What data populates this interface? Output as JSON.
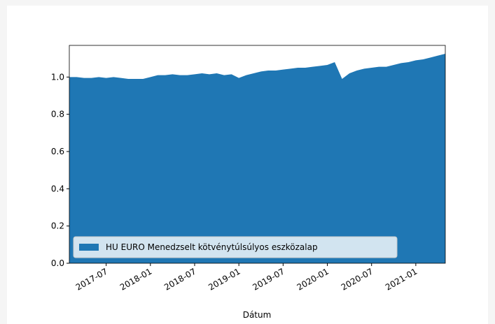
{
  "chart_data": {
    "type": "area",
    "xlabel": "Dátum",
    "x": [
      "2017-02",
      "2017-03",
      "2017-04",
      "2017-05",
      "2017-06",
      "2017-07",
      "2017-08",
      "2017-09",
      "2017-10",
      "2017-11",
      "2017-12",
      "2018-01",
      "2018-02",
      "2018-03",
      "2018-04",
      "2018-05",
      "2018-06",
      "2018-07",
      "2018-08",
      "2018-09",
      "2018-10",
      "2018-11",
      "2018-12",
      "2019-01",
      "2019-02",
      "2019-03",
      "2019-04",
      "2019-05",
      "2019-06",
      "2019-07",
      "2019-08",
      "2019-09",
      "2019-10",
      "2019-11",
      "2019-12",
      "2020-01",
      "2020-02",
      "2020-03",
      "2020-04",
      "2020-05",
      "2020-06",
      "2020-07",
      "2020-08",
      "2020-09",
      "2020-10",
      "2020-11",
      "2020-12",
      "2021-01",
      "2021-02",
      "2021-03",
      "2021-04",
      "2021-05"
    ],
    "series": [
      {
        "name": "HU EURO Menedzselt kötvénytúlsúlyos eszközalap",
        "color": "#1f77b4",
        "values": [
          1.0,
          1.0,
          0.995,
          0.995,
          1.0,
          0.995,
          1.0,
          0.995,
          0.99,
          0.99,
          0.99,
          1.0,
          1.01,
          1.01,
          1.015,
          1.01,
          1.01,
          1.015,
          1.02,
          1.015,
          1.02,
          1.01,
          1.015,
          0.995,
          1.01,
          1.02,
          1.03,
          1.035,
          1.035,
          1.04,
          1.045,
          1.05,
          1.05,
          1.055,
          1.06,
          1.065,
          1.08,
          0.99,
          1.02,
          1.035,
          1.045,
          1.05,
          1.055,
          1.055,
          1.065,
          1.075,
          1.08,
          1.09,
          1.095,
          1.105,
          1.115,
          1.125
        ]
      }
    ],
    "xlim": [
      "2017-02",
      "2021-05"
    ],
    "xticks": [
      "2017-07",
      "2018-01",
      "2018-07",
      "2019-01",
      "2019-07",
      "2020-01",
      "2020-07",
      "2021-01"
    ],
    "ylim": [
      0,
      1.17
    ],
    "yticks": [
      {
        "value": 0,
        "label": "0.0"
      },
      0.2,
      0.4,
      0.6,
      0.8,
      {
        "value": 1,
        "label": "1.0"
      }
    ],
    "legend": "lower left"
  }
}
